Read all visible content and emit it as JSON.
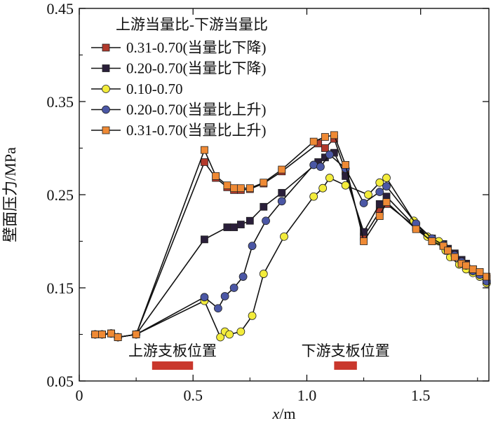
{
  "chart_data": {
    "type": "line",
    "title": "",
    "xlabel": "x/m",
    "xlabel_italic_part": "x",
    "xlabel_unit_part": "/m",
    "ylabel": "壁面压力/MPa",
    "xlim": [
      0,
      1.8
    ],
    "ylim": [
      0.05,
      0.45
    ],
    "xticks": [
      0,
      0.5,
      1.0,
      1.5
    ],
    "xtick_labels": [
      "0",
      "0.5",
      "1.0",
      "1.5"
    ],
    "yticks": [
      0.05,
      0.15,
      0.25,
      0.35,
      0.45
    ],
    "ytick_labels": [
      "0.05",
      "0.15",
      "0.25",
      "0.35",
      "0.45"
    ],
    "legend_title": "上游当量比-下游当量比",
    "legend_position": "top-left",
    "series": [
      {
        "name": "0.31-0.70(当量比下降)",
        "marker": "square",
        "color": "#b23a2c",
        "points": [
          [
            0.07,
            0.1
          ],
          [
            0.1,
            0.1
          ],
          [
            0.14,
            0.101
          ],
          [
            0.17,
            0.097
          ],
          [
            0.25,
            0.1
          ],
          [
            0.55,
            0.285
          ],
          [
            0.6,
            0.268
          ],
          [
            0.65,
            0.258
          ],
          [
            0.68,
            0.255
          ],
          [
            0.71,
            0.255
          ],
          [
            0.75,
            0.256
          ],
          [
            0.81,
            0.262
          ],
          [
            0.89,
            0.275
          ],
          [
            1.05,
            0.305
          ],
          [
            1.08,
            0.3
          ],
          [
            1.12,
            0.31
          ],
          [
            1.17,
            0.275
          ],
          [
            1.25,
            0.205
          ],
          [
            1.32,
            0.232
          ],
          [
            1.35,
            0.24
          ],
          [
            1.48,
            0.215
          ],
          [
            1.55,
            0.2
          ],
          [
            1.6,
            0.195
          ],
          [
            1.62,
            0.19
          ],
          [
            1.65,
            0.185
          ],
          [
            1.68,
            0.18
          ],
          [
            1.7,
            0.175
          ],
          [
            1.73,
            0.17
          ],
          [
            1.76,
            0.167
          ],
          [
            1.79,
            0.16
          ]
        ]
      },
      {
        "name": "0.20-0.70(当量比下降)",
        "marker": "square",
        "color": "#2a1f3a",
        "points": [
          [
            0.07,
            0.1
          ],
          [
            0.1,
            0.1
          ],
          [
            0.14,
            0.101
          ],
          [
            0.17,
            0.097
          ],
          [
            0.25,
            0.1
          ],
          [
            0.55,
            0.202
          ],
          [
            0.65,
            0.215
          ],
          [
            0.68,
            0.215
          ],
          [
            0.71,
            0.218
          ],
          [
            0.75,
            0.222
          ],
          [
            0.81,
            0.237
          ],
          [
            0.89,
            0.252
          ],
          [
            1.05,
            0.285
          ],
          [
            1.08,
            0.29
          ],
          [
            1.12,
            0.295
          ],
          [
            1.17,
            0.27
          ],
          [
            1.25,
            0.21
          ],
          [
            1.32,
            0.24
          ],
          [
            1.35,
            0.248
          ],
          [
            1.48,
            0.215
          ],
          [
            1.55,
            0.203
          ],
          [
            1.6,
            0.197
          ],
          [
            1.62,
            0.192
          ],
          [
            1.65,
            0.187
          ],
          [
            1.68,
            0.18
          ],
          [
            1.7,
            0.176
          ],
          [
            1.73,
            0.17
          ],
          [
            1.76,
            0.166
          ],
          [
            1.79,
            0.16
          ]
        ]
      },
      {
        "name": "0.10-0.70",
        "marker": "circle",
        "color": "#f3ec3b",
        "points": [
          [
            0.07,
            0.1
          ],
          [
            0.1,
            0.1
          ],
          [
            0.14,
            0.101
          ],
          [
            0.17,
            0.097
          ],
          [
            0.25,
            0.1
          ],
          [
            0.55,
            0.136
          ],
          [
            0.62,
            0.097
          ],
          [
            0.64,
            0.103
          ],
          [
            0.66,
            0.1
          ],
          [
            0.71,
            0.103
          ],
          [
            0.76,
            0.12
          ],
          [
            0.81,
            0.165
          ],
          [
            0.9,
            0.205
          ],
          [
            1.03,
            0.248
          ],
          [
            1.07,
            0.257
          ],
          [
            1.1,
            0.268
          ],
          [
            1.17,
            0.26
          ],
          [
            1.27,
            0.25
          ],
          [
            1.32,
            0.263
          ],
          [
            1.35,
            0.268
          ],
          [
            1.47,
            0.222
          ],
          [
            1.53,
            0.205
          ],
          [
            1.58,
            0.2
          ],
          [
            1.61,
            0.19
          ],
          [
            1.63,
            0.183
          ],
          [
            1.67,
            0.175
          ],
          [
            1.7,
            0.17
          ],
          [
            1.73,
            0.166
          ],
          [
            1.76,
            0.162
          ],
          [
            1.79,
            0.155
          ]
        ]
      },
      {
        "name": "0.20-0.70(当量比上升)",
        "marker": "circle",
        "color": "#4b57a5",
        "points": [
          [
            0.07,
            0.1
          ],
          [
            0.1,
            0.1
          ],
          [
            0.14,
            0.101
          ],
          [
            0.17,
            0.097
          ],
          [
            0.25,
            0.1
          ],
          [
            0.55,
            0.14
          ],
          [
            0.61,
            0.128
          ],
          [
            0.64,
            0.141
          ],
          [
            0.68,
            0.15
          ],
          [
            0.72,
            0.162
          ],
          [
            0.76,
            0.195
          ],
          [
            0.82,
            0.222
          ],
          [
            0.89,
            0.243
          ],
          [
            1.03,
            0.282
          ],
          [
            1.06,
            0.28
          ],
          [
            1.1,
            0.293
          ],
          [
            1.17,
            0.278
          ],
          [
            1.25,
            0.241
          ],
          [
            1.32,
            0.253
          ],
          [
            1.35,
            0.259
          ],
          [
            1.48,
            0.219
          ],
          [
            1.55,
            0.203
          ],
          [
            1.6,
            0.196
          ],
          [
            1.62,
            0.19
          ],
          [
            1.65,
            0.185
          ],
          [
            1.68,
            0.178
          ],
          [
            1.7,
            0.174
          ],
          [
            1.73,
            0.168
          ],
          [
            1.76,
            0.164
          ],
          [
            1.79,
            0.157
          ]
        ]
      },
      {
        "name": "0.31-0.70(当量比上升)",
        "marker": "square",
        "color": "#ef8a35",
        "points": [
          [
            0.07,
            0.1
          ],
          [
            0.1,
            0.1
          ],
          [
            0.14,
            0.101
          ],
          [
            0.17,
            0.097
          ],
          [
            0.25,
            0.1
          ],
          [
            0.55,
            0.298
          ],
          [
            0.6,
            0.27
          ],
          [
            0.65,
            0.26
          ],
          [
            0.68,
            0.257
          ],
          [
            0.71,
            0.257
          ],
          [
            0.75,
            0.257
          ],
          [
            0.81,
            0.263
          ],
          [
            0.89,
            0.277
          ],
          [
            1.03,
            0.307
          ],
          [
            1.08,
            0.312
          ],
          [
            1.12,
            0.314
          ],
          [
            1.17,
            0.282
          ],
          [
            1.25,
            0.2
          ],
          [
            1.32,
            0.227
          ],
          [
            1.35,
            0.242
          ],
          [
            1.48,
            0.213
          ],
          [
            1.55,
            0.2
          ],
          [
            1.6,
            0.195
          ],
          [
            1.62,
            0.19
          ],
          [
            1.65,
            0.183
          ],
          [
            1.68,
            0.176
          ],
          [
            1.7,
            0.174
          ],
          [
            1.73,
            0.17
          ],
          [
            1.76,
            0.167
          ],
          [
            1.79,
            0.162
          ]
        ]
      }
    ],
    "annotations": [
      {
        "label": "上游支板位置",
        "x_range": [
          0.32,
          0.5
        ],
        "y": 0.0665
      },
      {
        "label": "下游支板位置",
        "x_range": [
          1.12,
          1.22
        ],
        "y": 0.0665
      }
    ],
    "annotation_bar_color": "#c9372c"
  }
}
